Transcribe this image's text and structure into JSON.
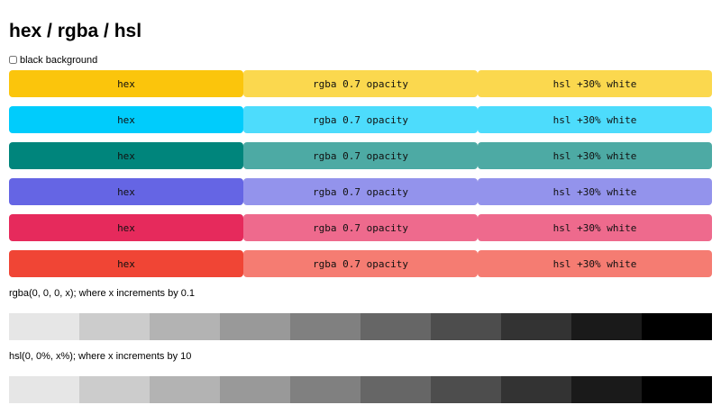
{
  "title": "hex / rgba / hsl",
  "toggle": {
    "label": "black background",
    "checked": false
  },
  "swatch_rows": [
    {
      "hex": "#fbc50c",
      "rgba": "#fbd84e",
      "hsl": "#fbd84e",
      "labels": [
        "hex",
        "rgba 0.7 opacity",
        "hsl +30% white"
      ]
    },
    {
      "hex": "#00ccfc",
      "rgba": "#4ddcfc",
      "hsl": "#4ddcfc",
      "labels": [
        "hex",
        "rgba 0.7 opacity",
        "hsl +30% white"
      ]
    },
    {
      "hex": "#00857c",
      "rgba": "#4daaa4",
      "hsl": "#4daaa4",
      "labels": [
        "hex",
        "rgba 0.7 opacity",
        "hsl +30% white"
      ]
    },
    {
      "hex": "#6565e4",
      "rgba": "#9393ec",
      "hsl": "#9393ec",
      "labels": [
        "hex",
        "rgba 0.7 opacity",
        "hsl +30% white"
      ]
    },
    {
      "hex": "#e62a5c",
      "rgba": "#ee6a8d",
      "hsl": "#ee6a8d",
      "labels": [
        "hex",
        "rgba 0.7 opacity",
        "hsl +30% white"
      ]
    },
    {
      "hex": "#f04535",
      "rgba": "#f57c72",
      "hsl": "#f57c72",
      "labels": [
        "hex",
        "rgba 0.7 opacity",
        "hsl +30% white"
      ]
    }
  ],
  "rgba_caption": "rgba(0, 0, 0, x); where x increments by 0.1",
  "rgba_grays": [
    "#e6e6e6",
    "#cccccc",
    "#b3b3b3",
    "#999999",
    "#808080",
    "#666666",
    "#4d4d4d",
    "#333333",
    "#1a1a1a",
    "#000000"
  ],
  "hsl_caption": "hsl(0, 0%, x%); where x increments by 10",
  "hsl_grays": [
    "#e6e6e6",
    "#cccccc",
    "#b3b3b3",
    "#999999",
    "#808080",
    "#666666",
    "#4d4d4d",
    "#333333",
    "#1a1a1a",
    "#000000"
  ]
}
